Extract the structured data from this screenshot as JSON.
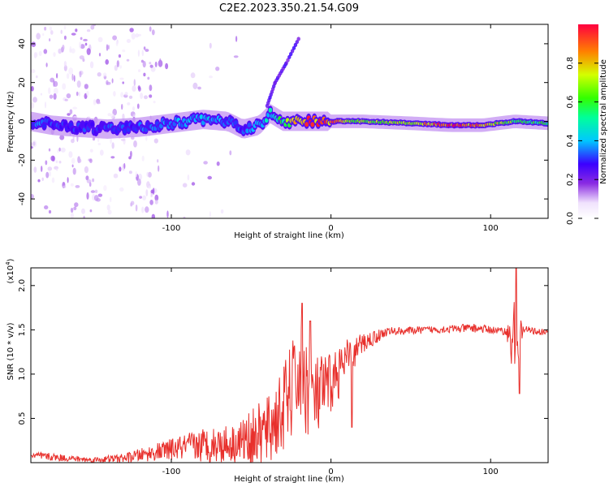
{
  "title": "C2E2.2023.350.21.54.G09",
  "colors": {
    "snr_line": "#e8302c",
    "axis": "#000000",
    "background": "#ffffff",
    "spectrum_gradient": [
      "#ffffff",
      "#e9d6fb",
      "#8a2be2",
      "#3b00ff",
      "#00c8ff",
      "#00ff7f",
      "#d4ff00",
      "#ff7f00",
      "#ff0000"
    ]
  },
  "chart_data": [
    {
      "type": "heatmap",
      "name": "spectrogram",
      "title": "C2E2.2023.350.21.54.G09",
      "xlabel": "Height of straight line (km)",
      "ylabel": "Frequency (Hz)",
      "xlim": [
        -188,
        136
      ],
      "ylim": [
        -50,
        50
      ],
      "x_ticks": [
        -100,
        0,
        100
      ],
      "x_tick_labels": [
        "-100",
        "0",
        "100"
      ],
      "y_ticks": [
        -40,
        -20,
        0,
        20,
        40
      ],
      "y_tick_labels": [
        "-40",
        "-20",
        "0",
        "20",
        "40"
      ],
      "colorbar": {
        "label": "Normalized spectral amplitude",
        "range": [
          0.0,
          1.0
        ],
        "ticks": [
          0.0,
          0.2,
          0.4,
          0.6,
          0.8
        ],
        "tick_labels": [
          "0.0",
          "0.2",
          "0.4",
          "0.6",
          "0.8"
        ]
      },
      "ridge": [
        {
          "x": -188,
          "f": 0,
          "amp": 0.35
        },
        {
          "x": -175,
          "f": -2,
          "amp": 0.32
        },
        {
          "x": -160,
          "f": -3,
          "amp": 0.3
        },
        {
          "x": -140,
          "f": -4,
          "amp": 0.3
        },
        {
          "x": -120,
          "f": -3,
          "amp": 0.33
        },
        {
          "x": -100,
          "f": -1,
          "amp": 0.35
        },
        {
          "x": -80,
          "f": 1,
          "amp": 0.38
        },
        {
          "x": -65,
          "f": 0,
          "amp": 0.35
        },
        {
          "x": -55,
          "f": -4,
          "amp": 0.3
        },
        {
          "x": -45,
          "f": -2,
          "amp": 0.4
        },
        {
          "x": -38,
          "f": 4,
          "amp": 0.45
        },
        {
          "x": -30,
          "f": 0,
          "amp": 0.55
        },
        {
          "x": -20,
          "f": 0,
          "amp": 0.85
        },
        {
          "x": -5,
          "f": 0,
          "amp": 0.9
        },
        {
          "x": 20,
          "f": 0,
          "amp": 0.65
        },
        {
          "x": 50,
          "f": -1,
          "amp": 0.7
        },
        {
          "x": 75,
          "f": -2,
          "amp": 0.95
        },
        {
          "x": 95,
          "f": -2,
          "amp": 0.8
        },
        {
          "x": 115,
          "f": 0,
          "amp": 0.6
        },
        {
          "x": 136,
          "f": -1,
          "amp": 0.55
        }
      ],
      "drift_track": [
        {
          "x": -40,
          "f": 8
        },
        {
          "x": -35,
          "f": 20
        },
        {
          "x": -28,
          "f": 30
        },
        {
          "x": -20,
          "f": 43
        }
      ]
    },
    {
      "type": "line",
      "name": "snr",
      "xlabel": "Height of straight line (km)",
      "ylabel": "SNR (10 * v/v)",
      "y_multiplier_label": "(x10",
      "y_multiplier_exp": "4",
      "y_multiplier_close": ")",
      "xlim": [
        -188,
        136
      ],
      "ylim": [
        0,
        2.2
      ],
      "x_ticks": [
        -100,
        0,
        100
      ],
      "x_tick_labels": [
        "-100",
        "0",
        "100"
      ],
      "y_ticks": [
        0.5,
        1.0,
        1.5,
        2.0
      ],
      "y_tick_labels": [
        "0.5",
        "1.0",
        "1.5",
        "2.0"
      ],
      "series": [
        {
          "name": "SNR",
          "envelope": [
            {
              "x": -188,
              "base": 0.08,
              "noise": 0.05
            },
            {
              "x": -150,
              "base": 0.03,
              "noise": 0.03
            },
            {
              "x": -130,
              "base": 0.05,
              "noise": 0.05
            },
            {
              "x": -100,
              "base": 0.15,
              "noise": 0.12
            },
            {
              "x": -80,
              "base": 0.2,
              "noise": 0.2
            },
            {
              "x": -60,
              "base": 0.22,
              "noise": 0.22
            },
            {
              "x": -40,
              "base": 0.35,
              "noise": 0.4
            },
            {
              "x": -30,
              "base": 0.6,
              "noise": 0.5
            },
            {
              "x": -20,
              "base": 1.0,
              "noise": 0.6
            },
            {
              "x": -10,
              "base": 0.7,
              "noise": 0.5
            },
            {
              "x": 0,
              "base": 0.9,
              "noise": 0.35
            },
            {
              "x": 10,
              "base": 1.15,
              "noise": 0.25
            },
            {
              "x": 20,
              "base": 1.35,
              "noise": 0.12
            },
            {
              "x": 35,
              "base": 1.48,
              "noise": 0.05
            },
            {
              "x": 60,
              "base": 1.5,
              "noise": 0.04
            },
            {
              "x": 90,
              "base": 1.52,
              "noise": 0.05
            },
            {
              "x": 110,
              "base": 1.48,
              "noise": 0.04
            },
            {
              "x": 115,
              "base": 1.3,
              "noise": 0.6
            },
            {
              "x": 120,
              "base": 1.5,
              "noise": 0.05
            },
            {
              "x": 136,
              "base": 1.47,
              "noise": 0.03
            }
          ],
          "spikes": [
            {
              "x": -18,
              "y": 1.8
            },
            {
              "x": -13,
              "y": 1.6
            },
            {
              "x": 13,
              "y": 0.4
            },
            {
              "x": 116,
              "y": 2.2
            },
            {
              "x": 118,
              "y": 0.78
            }
          ]
        }
      ]
    }
  ]
}
